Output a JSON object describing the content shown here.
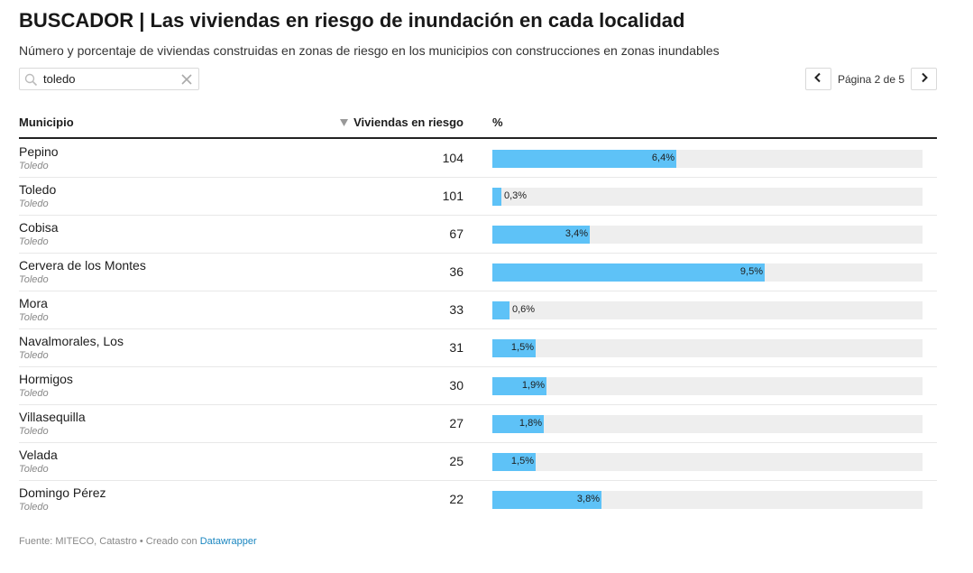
{
  "title": "BUSCADOR | Las viviendas en riesgo de inundación en cada localidad",
  "subtitle": "Número y porcentaje de viviendas construidas en zonas de riesgo en los municipios con construcciones en zonas inundables",
  "search": {
    "value": "toledo",
    "icon": "search-icon",
    "clear_icon": "close-icon"
  },
  "pagination": {
    "label": "Página 2 de 5",
    "prev_icon": "chevron-left-icon",
    "next_icon": "chevron-right-icon"
  },
  "table": {
    "headers": {
      "municipio": "Municipio",
      "viviendas": "Viviendas en riesgo",
      "pct": "%"
    },
    "sort_icon": "sort-descending-icon",
    "bar_color": "#5ec2f7",
    "bar_bg_color": "#eeeeee",
    "rows": [
      {
        "municipio": "Pepino",
        "provincia": "Toledo",
        "viviendas": "104",
        "pct_label": "6,4%",
        "pct": 6.4
      },
      {
        "municipio": "Toledo",
        "provincia": "Toledo",
        "viviendas": "101",
        "pct_label": "0,3%",
        "pct": 0.3
      },
      {
        "municipio": "Cobisa",
        "provincia": "Toledo",
        "viviendas": "67",
        "pct_label": "3,4%",
        "pct": 3.4
      },
      {
        "municipio": "Cervera de los Montes",
        "provincia": "Toledo",
        "viviendas": "36",
        "pct_label": "9,5%",
        "pct": 9.5
      },
      {
        "municipio": "Mora",
        "provincia": "Toledo",
        "viviendas": "33",
        "pct_label": "0,6%",
        "pct": 0.6
      },
      {
        "municipio": "Navalmorales, Los",
        "provincia": "Toledo",
        "viviendas": "31",
        "pct_label": "1,5%",
        "pct": 1.5
      },
      {
        "municipio": "Hormigos",
        "provincia": "Toledo",
        "viviendas": "30",
        "pct_label": "1,9%",
        "pct": 1.9
      },
      {
        "municipio": "Villasequilla",
        "provincia": "Toledo",
        "viviendas": "27",
        "pct_label": "1,8%",
        "pct": 1.8
      },
      {
        "municipio": "Velada",
        "provincia": "Toledo",
        "viviendas": "25",
        "pct_label": "1,5%",
        "pct": 1.5
      },
      {
        "municipio": "Domingo Pérez",
        "provincia": "Toledo",
        "viviendas": "22",
        "pct_label": "3,8%",
        "pct": 3.8
      }
    ]
  },
  "footer": {
    "text": "Fuente: MITECO, Catastro • Creado con ",
    "link": "Datawrapper"
  }
}
